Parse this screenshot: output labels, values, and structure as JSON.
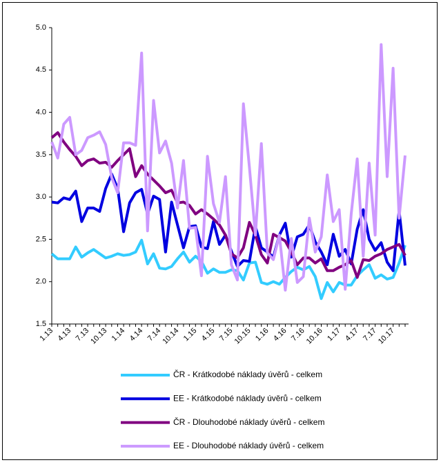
{
  "chart_data": {
    "type": "line",
    "categories": [
      "1.13",
      null,
      null,
      "4.13",
      null,
      null,
      "7.13",
      null,
      null,
      "10.13",
      null,
      null,
      "1.14",
      null,
      null,
      "4.14",
      null,
      null,
      "7.14",
      null,
      null,
      "10.14",
      null,
      null,
      "1.15",
      null,
      null,
      "4.15",
      null,
      null,
      "7.15",
      null,
      null,
      "10.15",
      null,
      null,
      "1.16",
      null,
      null,
      "4.16",
      null,
      null,
      "7.16",
      null,
      null,
      "10.16",
      null,
      null,
      "1.17",
      null,
      null,
      "4.17",
      null,
      null,
      "7.17",
      null,
      null,
      "10.17",
      null,
      null
    ],
    "series": [
      {
        "name": "ČR - Krátkodobé náklady úvěrů - celkem",
        "color": "#33ccff",
        "values": [
          2.33,
          2.27,
          2.27,
          2.27,
          2.41,
          2.29,
          2.34,
          2.38,
          2.33,
          2.28,
          2.3,
          2.33,
          2.31,
          2.32,
          2.35,
          2.49,
          2.21,
          2.33,
          2.16,
          2.15,
          2.18,
          2.27,
          2.35,
          2.23,
          2.3,
          2.24,
          2.1,
          2.15,
          2.11,
          2.11,
          2.14,
          2.13,
          2.02,
          2.22,
          2.23,
          1.99,
          1.97,
          2.0,
          1.97,
          2.05,
          2.12,
          2.17,
          2.14,
          2.18,
          2.06,
          1.8,
          1.99,
          1.88,
          1.99,
          1.96,
          1.96,
          2.07,
          2.14,
          2.2,
          2.04,
          2.08,
          2.03,
          2.05,
          2.22,
          2.43
        ]
      },
      {
        "name": "EE - Krátkodobé náklady úvěrů - celkem",
        "color": "#0000e0",
        "values": [
          2.94,
          2.93,
          2.99,
          2.97,
          3.07,
          2.71,
          2.87,
          2.87,
          2.83,
          3.1,
          3.27,
          3.1,
          2.59,
          2.93,
          3.05,
          3.09,
          2.8,
          3.01,
          2.97,
          2.35,
          2.94,
          2.67,
          2.4,
          2.65,
          2.66,
          2.41,
          2.39,
          2.71,
          2.44,
          2.55,
          2.36,
          2.18,
          2.25,
          2.24,
          2.65,
          2.4,
          2.35,
          2.29,
          2.55,
          2.69,
          2.29,
          2.53,
          2.56,
          2.67,
          2.47,
          2.35,
          2.2,
          2.56,
          2.3,
          2.38,
          2.21,
          2.62,
          2.85,
          2.5,
          2.37,
          2.46,
          2.23,
          2.13,
          2.84,
          2.19
        ]
      },
      {
        "name": "ČR - Dlouhodobé náklady úvěrů - celkem",
        "color": "#800080",
        "values": [
          3.7,
          3.76,
          3.65,
          3.56,
          3.48,
          3.37,
          3.43,
          3.45,
          3.4,
          3.41,
          3.35,
          3.43,
          3.5,
          3.57,
          3.24,
          3.37,
          3.27,
          3.2,
          3.13,
          3.05,
          3.08,
          2.93,
          2.94,
          2.9,
          2.8,
          2.85,
          2.8,
          2.74,
          2.67,
          2.55,
          2.33,
          2.28,
          2.4,
          2.7,
          2.55,
          2.32,
          2.22,
          2.56,
          2.52,
          2.48,
          2.35,
          2.2,
          2.28,
          2.28,
          2.22,
          2.27,
          2.13,
          2.13,
          2.17,
          2.2,
          2.25,
          2.05,
          2.26,
          2.25,
          2.3,
          2.33,
          2.38,
          2.41,
          2.44,
          2.31
        ]
      },
      {
        "name": "EE - Dlouhodobé náklady úvěrů - celkem",
        "color": "#cc99ff",
        "values": [
          3.65,
          3.46,
          3.86,
          3.94,
          3.5,
          3.55,
          3.7,
          3.73,
          3.77,
          3.62,
          3.23,
          3.05,
          3.64,
          3.64,
          3.61,
          4.7,
          2.6,
          4.14,
          3.52,
          3.66,
          3.4,
          2.87,
          3.43,
          2.63,
          2.64,
          2.07,
          3.48,
          2.92,
          2.7,
          3.24,
          2.2,
          2.02,
          4.1,
          3.35,
          2.55,
          3.63,
          2.34,
          2.26,
          2.55,
          1.9,
          2.51,
          1.99,
          2.06,
          2.75,
          2.35,
          2.53,
          3.26,
          2.71,
          2.85,
          1.91,
          2.8,
          3.45,
          2.3,
          3.4,
          2.55,
          4.8,
          3.24,
          4.52,
          2.75,
          3.49
        ]
      }
    ],
    "ylim": [
      1.5,
      5.0
    ],
    "yticks": [
      1.5,
      {
        "value": 2.0,
        "label": "2.0"
      },
      2.5,
      {
        "value": 3.0,
        "label": "3.0"
      },
      3.5,
      {
        "value": 4.0,
        "label": "4.0"
      },
      4.5,
      {
        "value": 5.0,
        "label": "5.0"
      }
    ]
  }
}
